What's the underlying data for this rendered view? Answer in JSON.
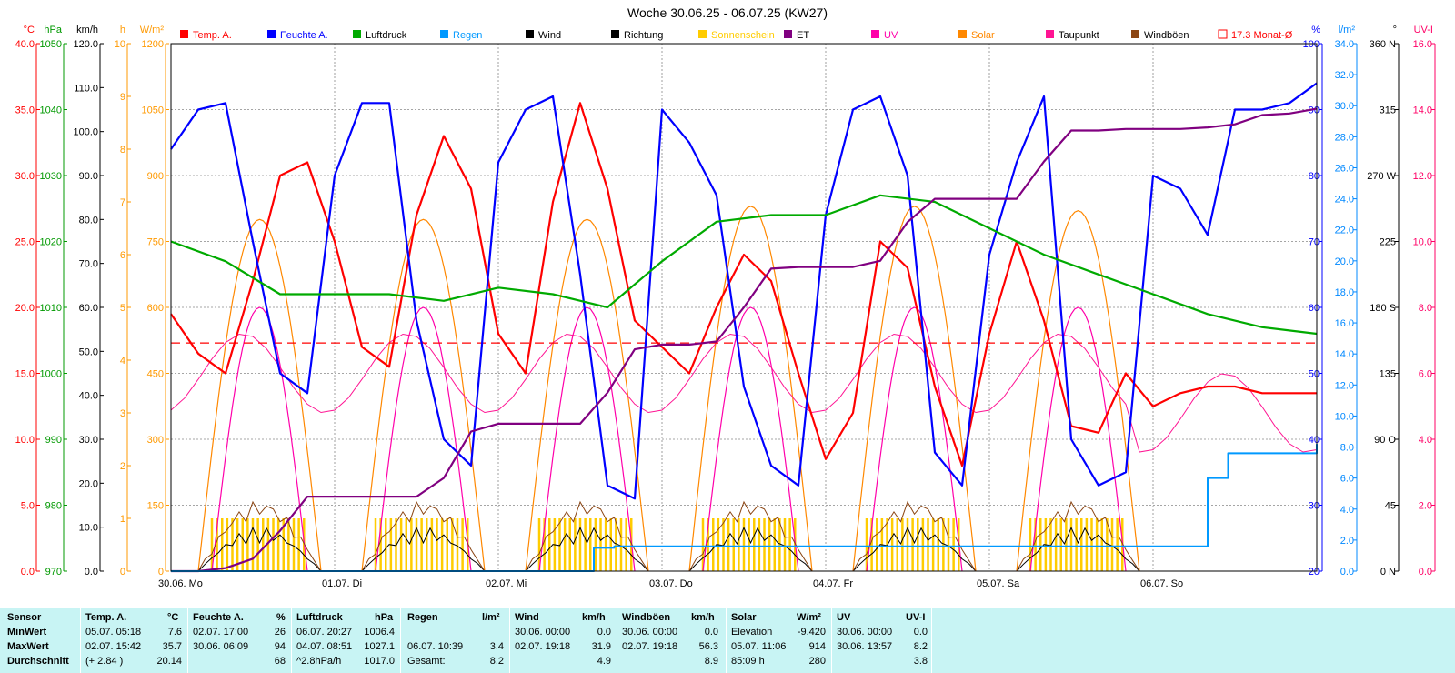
{
  "chart_data": {
    "type": "line",
    "title": "Woche 30.06.25 - 06.07.25 (KW27)",
    "x_days": [
      "30.06. Mo",
      "01.07. Di",
      "02.07. Mi",
      "03.07. Do",
      "04.07. Fr",
      "05.07. Sa",
      "06.07. So"
    ],
    "x_range_hours": [
      0,
      168
    ],
    "grid": true,
    "axes_left": [
      {
        "unit": "°C",
        "color": "#ff0000",
        "ticks": [
          "40.0",
          "35.0",
          "30.0",
          "25.0",
          "20.0",
          "15.0",
          "10.0",
          "5.0",
          "0.0"
        ]
      },
      {
        "unit": "hPa",
        "color": "#009900",
        "ticks": [
          "1050",
          "1040",
          "1030",
          "1020",
          "1010",
          "1000",
          "990",
          "980",
          "970"
        ]
      },
      {
        "unit": "km/h",
        "color": "#000000",
        "ticks": [
          "120.0",
          "110.0",
          "100.0",
          "90.0",
          "80.0",
          "70.0",
          "60.0",
          "50.0",
          "40.0",
          "30.0",
          "20.0",
          "10.0",
          "0.0"
        ]
      },
      {
        "unit": "h",
        "color": "#ff9900",
        "ticks": [
          "10",
          "9",
          "8",
          "7",
          "6",
          "5",
          "4",
          "3",
          "2",
          "1",
          "0"
        ]
      },
      {
        "unit": "W/m²",
        "color": "#ff9900",
        "ticks": [
          "1200",
          "1050",
          "900",
          "750",
          "600",
          "450",
          "300",
          "150",
          "0"
        ]
      }
    ],
    "axes_right": [
      {
        "unit": "%",
        "color": "#0000ff",
        "ticks": [
          "100",
          "90",
          "80",
          "70",
          "60",
          "50",
          "40",
          "30",
          "20"
        ]
      },
      {
        "unit": "l/m²",
        "color": "#0088ff",
        "ticks": [
          "34.0",
          "32.0",
          "30.0",
          "28.0",
          "26.0",
          "24.0",
          "22.0",
          "20.0",
          "18.0",
          "16.0",
          "14.0",
          "12.0",
          "10.0",
          "8.0",
          "6.0",
          "4.0",
          "2.0",
          "0.0"
        ]
      },
      {
        "unit": "°",
        "color": "#000000",
        "ticks": [
          "360 N",
          "315",
          "270 W",
          "225",
          "180 S",
          "135",
          "90 O",
          "45",
          "0 N"
        ]
      },
      {
        "unit": "UV-I",
        "color": "#ff0066",
        "ticks": [
          "16.0",
          "14.0",
          "12.0",
          "10.0",
          "8.0",
          "6.0",
          "4.0",
          "2.0",
          "0.0"
        ]
      }
    ],
    "legend": [
      {
        "name": "Temp. A.",
        "color": "#ff0000"
      },
      {
        "name": "Feuchte A.",
        "color": "#0000ff"
      },
      {
        "name": "Luftdruck",
        "color": "#00aa00"
      },
      {
        "name": "Regen",
        "color": "#0099ff"
      },
      {
        "name": "Wind",
        "color": "#000000"
      },
      {
        "name": "Richtung",
        "color": "#000000"
      },
      {
        "name": "Sonnenschein",
        "color": "#ffcc00"
      },
      {
        "name": "ET",
        "color": "#800080"
      },
      {
        "name": "UV",
        "color": "#ff00aa"
      },
      {
        "name": "Solar",
        "color": "#ff8800"
      },
      {
        "name": "Taupunkt",
        "color": "#ff1493"
      },
      {
        "name": "Windböen",
        "color": "#8b4513"
      },
      {
        "name": "17.3 Monat-Ø",
        "color": "#ff0000",
        "reference_value": 17.3
      }
    ],
    "series": [
      {
        "name": "Temp. A.",
        "axis": "°C",
        "color": "#ff0000",
        "x": [
          0,
          4,
          8,
          12,
          16,
          20,
          24,
          28,
          32,
          36,
          40,
          44,
          48,
          52,
          56,
          60,
          64,
          68,
          72,
          76,
          80,
          84,
          88,
          92,
          96,
          100,
          104,
          108,
          112,
          116,
          120,
          124,
          128,
          132,
          136,
          140,
          144,
          148,
          152,
          156,
          160,
          164,
          168
        ],
        "y": [
          19.5,
          16.5,
          15.0,
          22.0,
          30.0,
          31.0,
          25.0,
          17.0,
          15.5,
          27.0,
          33.0,
          29.0,
          18.0,
          15.0,
          28.0,
          35.5,
          29.0,
          19.0,
          17.0,
          15.0,
          20.0,
          24.0,
          22.0,
          15.0,
          8.5,
          12.0,
          25.0,
          23.0,
          14.0,
          8.0,
          18.0,
          25.0,
          19.0,
          11.0,
          10.5,
          15.0,
          12.5,
          13.5,
          14.0,
          14.0,
          13.5,
          13.5,
          13.5
        ]
      },
      {
        "name": "Feuchte A.",
        "axis": "%",
        "color": "#0000ff",
        "x": [
          0,
          4,
          8,
          12,
          16,
          20,
          24,
          28,
          32,
          36,
          40,
          44,
          48,
          52,
          56,
          60,
          64,
          68,
          72,
          76,
          80,
          84,
          88,
          92,
          96,
          100,
          104,
          108,
          112,
          116,
          120,
          124,
          128,
          132,
          136,
          140,
          144,
          148,
          152,
          156,
          160,
          164,
          168
        ],
        "y": [
          84,
          90,
          91,
          70,
          50,
          47,
          80,
          91,
          91,
          58,
          40,
          36,
          82,
          90,
          92,
          65,
          33,
          31,
          90,
          85,
          77,
          48,
          36,
          33,
          74,
          90,
          92,
          80,
          38,
          33,
          68,
          82,
          92,
          40,
          33,
          35,
          80,
          78,
          71,
          90,
          90,
          91,
          94
        ]
      },
      {
        "name": "Luftdruck",
        "axis": "hPa",
        "color": "#00aa00",
        "x": [
          0,
          8,
          16,
          24,
          32,
          40,
          48,
          56,
          64,
          72,
          80,
          88,
          96,
          104,
          112,
          120,
          128,
          136,
          144,
          152,
          160,
          168
        ],
        "y": [
          1020,
          1017,
          1012,
          1012,
          1012,
          1011,
          1013,
          1012,
          1010,
          1017,
          1023,
          1024,
          1024,
          1027,
          1026,
          1022,
          1018,
          1015,
          1012,
          1009,
          1007,
          1006
        ]
      },
      {
        "name": "ET",
        "axis": "l/m²",
        "color": "#800080",
        "x": [
          0,
          4,
          8,
          12,
          16,
          20,
          24,
          28,
          32,
          36,
          40,
          44,
          48,
          52,
          56,
          60,
          64,
          68,
          72,
          76,
          80,
          84,
          88,
          92,
          96,
          100,
          104,
          108,
          112,
          116,
          120,
          124,
          128,
          132,
          136,
          140,
          144,
          148,
          152,
          156,
          160,
          164,
          168
        ],
        "y": [
          0,
          0,
          0.2,
          0.8,
          2.6,
          4.8,
          4.8,
          4.8,
          4.8,
          4.8,
          6.0,
          9.0,
          9.5,
          9.5,
          9.5,
          9.5,
          11.5,
          14.3,
          14.6,
          14.6,
          14.8,
          17.0,
          19.5,
          19.6,
          19.6,
          19.6,
          20.0,
          22.5,
          24.0,
          24.0,
          24.0,
          24.0,
          26.4,
          28.4,
          28.4,
          28.5,
          28.5,
          28.5,
          28.6,
          28.8,
          29.4,
          29.5,
          29.8
        ]
      },
      {
        "name": "Regen",
        "axis": "l/m²",
        "color": "#0099ff",
        "x": [
          0,
          48,
          61,
          62,
          65,
          120,
          144,
          152,
          155,
          168
        ],
        "y": [
          0,
          0,
          0,
          1.5,
          1.6,
          1.6,
          1.6,
          6.0,
          7.6,
          8.2
        ]
      }
    ]
  },
  "stats": {
    "headers": {
      "sensor": "Sensor",
      "temp": "Temp. A.",
      "temp_unit": "°C",
      "hum": "Feuchte A.",
      "hum_unit": "%",
      "press": "Luftdruck",
      "press_unit": "hPa",
      "rain": "Regen",
      "rain_unit": "l/m²",
      "wind": "Wind",
      "wind_unit": "km/h",
      "gust": "Windböen",
      "gust_unit": "km/h",
      "solar": "Solar",
      "solar_unit": "W/m²",
      "uv": "UV",
      "uv_unit": "UV-I"
    },
    "row_labels": [
      "MinWert",
      "MaxWert",
      "Durchschnitt"
    ],
    "temp": {
      "min_ts": "05.07.  05:18",
      "min": "7.6",
      "max_ts": "02.07.  15:42",
      "max": "35.7",
      "avg_ts": "(+ 2.84 )",
      "avg": "20.14"
    },
    "hum": {
      "min_ts": "02.07.  17:00",
      "min": "26",
      "max_ts": "30.06.  06:09",
      "max": "94",
      "avg": "68"
    },
    "press": {
      "min_ts": "06.07.  20:27",
      "min": "1006.4",
      "max_ts": "04.07.  08:51",
      "max": "1027.1",
      "avg_ts": "^2.8hPa/h",
      "avg": "1017.0"
    },
    "rain": {
      "max_ts": "06.07.  10:39",
      "max": "3.4",
      "total_label": "Gesamt:",
      "total": "8.2"
    },
    "wind": {
      "min_ts": "30.06.  00:00",
      "min": "0.0",
      "max_ts": "02.07.  19:18",
      "max": "31.9",
      "avg": "4.9"
    },
    "gust": {
      "min_ts": "30.06.  00:00",
      "min": "0.0",
      "max_ts": "02.07.  19:18",
      "max": "56.3",
      "avg": "8.9"
    },
    "solar": {
      "min_label": "Elevation",
      "min": "-9.420",
      "max_ts": "05.07.  11:06",
      "max": "914",
      "avg_ts": "85:09 h",
      "avg": "280"
    },
    "uv": {
      "min_ts": "30.06.  00:00",
      "min": "0.0",
      "max_ts": "30.06.  13:57",
      "max": "8.2",
      "avg": "3.8"
    }
  }
}
